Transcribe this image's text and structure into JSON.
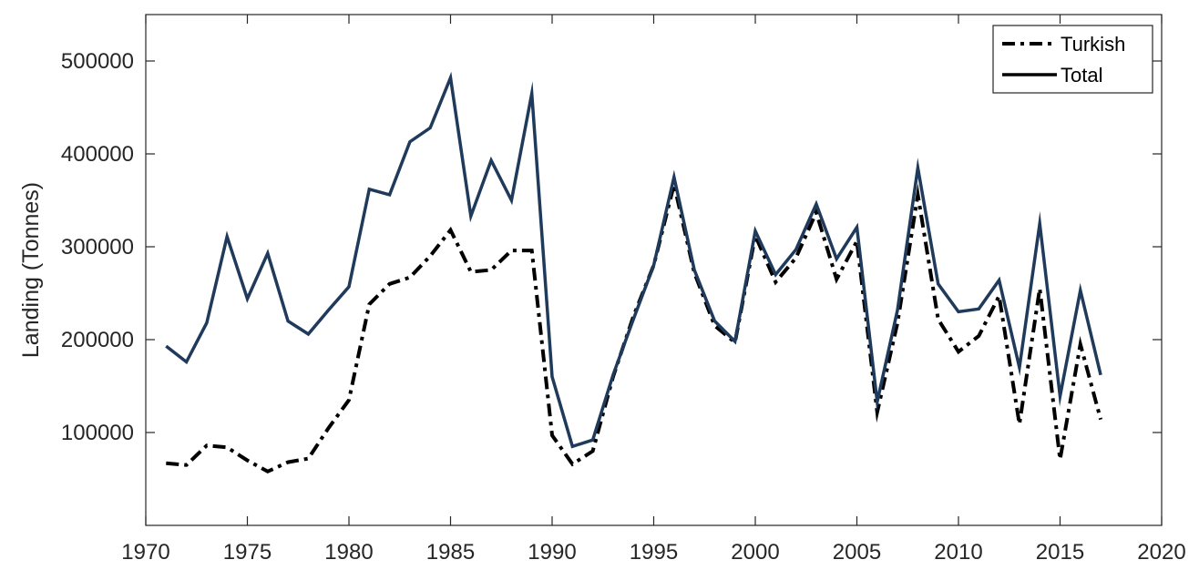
{
  "chart_data": {
    "type": "line",
    "title": "",
    "xlabel": "",
    "ylabel": "Landing (Tonnes)",
    "xlim": [
      1970,
      2020
    ],
    "ylim": [
      0,
      550000
    ],
    "xticks": [
      1970,
      1975,
      1980,
      1985,
      1990,
      1995,
      2000,
      2005,
      2010,
      2015,
      2020
    ],
    "yticks": [
      100000,
      200000,
      300000,
      400000,
      500000
    ],
    "grid": false,
    "legend": {
      "position": "top-right",
      "entries": [
        "Turkish",
        "Total"
      ]
    },
    "series": [
      {
        "name": "Turkish",
        "style": "dashdot",
        "color": "#000000",
        "x": [
          1971,
          1972,
          1973,
          1974,
          1975,
          1976,
          1977,
          1978,
          1979,
          1980,
          1981,
          1982,
          1983,
          1984,
          1985,
          1986,
          1987,
          1988,
          1989,
          1990,
          1991,
          1992,
          1993,
          1994,
          1995,
          1996,
          1997,
          1998,
          1999,
          2000,
          2001,
          2002,
          2003,
          2004,
          2005,
          2006,
          2007,
          2008,
          2009,
          2010,
          2011,
          2012,
          2013,
          2014,
          2015,
          2016,
          2017
        ],
        "values": [
          67000,
          65000,
          86000,
          84000,
          70000,
          58000,
          68000,
          72000,
          105000,
          135000,
          238000,
          260000,
          267000,
          290000,
          318000,
          273000,
          275000,
          296000,
          296000,
          97000,
          66000,
          80000,
          160000,
          225000,
          280000,
          367000,
          272000,
          215000,
          197000,
          312000,
          262000,
          288000,
          337000,
          265000,
          306000,
          122000,
          218000,
          356000,
          222000,
          187000,
          204000,
          247000,
          109000,
          255000,
          71000,
          195000,
          114000
        ]
      },
      {
        "name": "Total",
        "style": "solid",
        "color": "#1f3a5a",
        "x": [
          1971,
          1972,
          1973,
          1974,
          1975,
          1976,
          1977,
          1978,
          1979,
          1980,
          1981,
          1982,
          1983,
          1984,
          1985,
          1986,
          1987,
          1988,
          1989,
          1990,
          1991,
          1992,
          1993,
          1994,
          1995,
          1996,
          1997,
          1998,
          1999,
          2000,
          2001,
          2002,
          2003,
          2004,
          2005,
          2006,
          2007,
          2008,
          2009,
          2010,
          2011,
          2012,
          2013,
          2014,
          2015,
          2016,
          2017
        ],
        "values": [
          193000,
          176000,
          218000,
          311000,
          244000,
          293000,
          220000,
          206000,
          232000,
          257000,
          362000,
          356000,
          413000,
          428000,
          482000,
          333000,
          393000,
          350000,
          465000,
          160000,
          85000,
          92000,
          162000,
          222000,
          280000,
          375000,
          275000,
          220000,
          198000,
          317000,
          270000,
          297000,
          346000,
          287000,
          321000,
          133000,
          232000,
          385000,
          260000,
          230000,
          233000,
          264000,
          170000,
          325000,
          139000,
          253000,
          162000
        ]
      }
    ]
  }
}
